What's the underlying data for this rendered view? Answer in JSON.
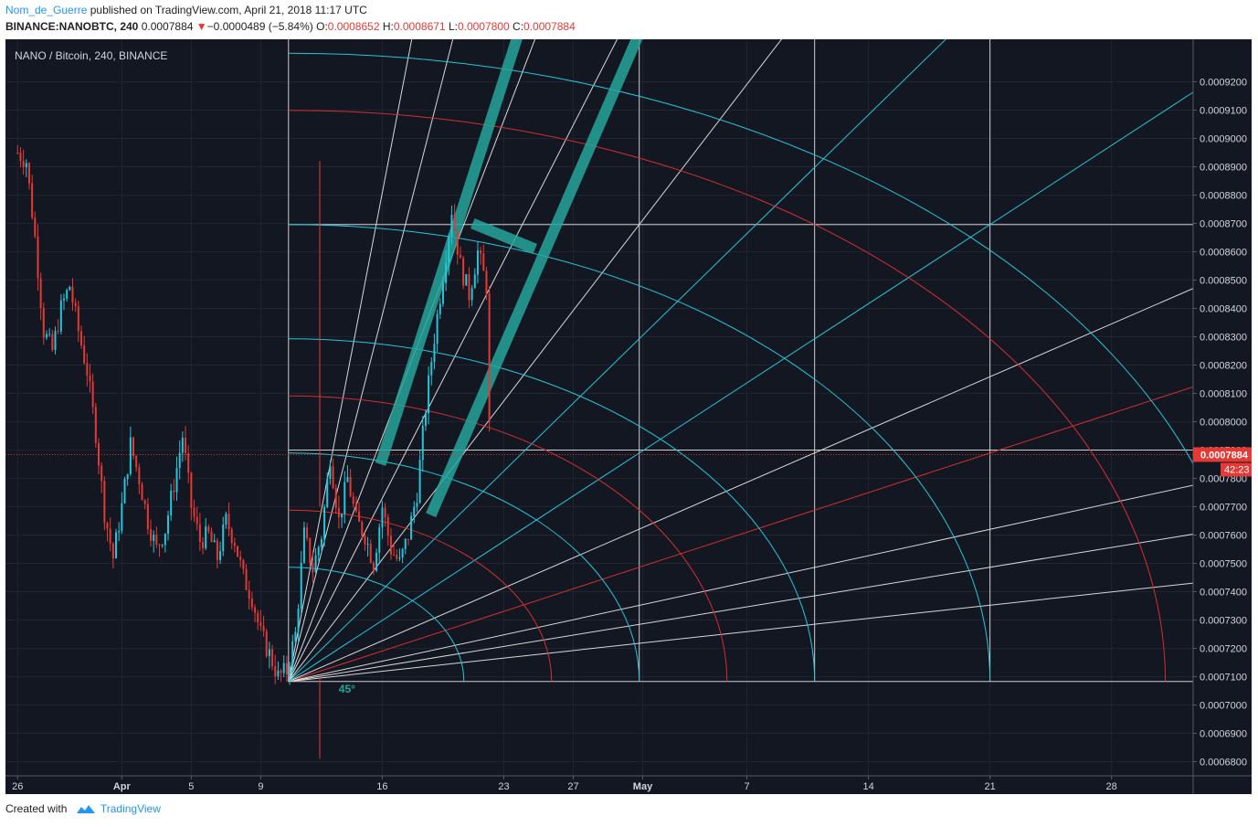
{
  "header": {
    "author": "Nom_de_Guerre",
    "published_text": "published on TradingView.com, April 21, 2018 11:17 UTC",
    "symbol_line": "BINANCE:NANOBTC, 240",
    "last": "0.0007884",
    "change": "−0.0000489 (−5.84%)",
    "o_label": "O:",
    "o_value": "0.0008652",
    "h_label": "H:",
    "h_value": "0.0008671",
    "l_label": "L:",
    "l_value": "0.0007800",
    "c_label": "C:",
    "c_value": "0.0007884",
    "down_arrow": "▼"
  },
  "footer": {
    "created_with": "Created with",
    "brand": "TradingView"
  },
  "colors": {
    "background": "#131722",
    "up": "#26c6da",
    "down": "#e53935",
    "fan_white": "#d8d8d8",
    "arc_cyan": "#26c6da",
    "arc_red": "#d32f2f",
    "price_tag": "#e53935",
    "band": "#26a69a"
  },
  "chart_data": {
    "type": "candlestick",
    "title": "NANO / Bitcoin, 240, BINANCE",
    "timeframe": "240",
    "ylim": [
      0.000675,
      0.000935
    ],
    "y_ticks": [
      "0.0006800",
      "0.0006900",
      "0.0007000",
      "0.0007100",
      "0.0007200",
      "0.0007300",
      "0.0007400",
      "0.0007500",
      "0.0007600",
      "0.0007700",
      "0.0007800",
      "0.0007900",
      "0.0008000",
      "0.0008100",
      "0.0008200",
      "0.0008300",
      "0.0008400",
      "0.0008500",
      "0.0008600",
      "0.0008700",
      "0.0008800",
      "0.0008900",
      "0.0009000",
      "0.0009100",
      "0.0009200"
    ],
    "x_ticks": [
      {
        "label": "26",
        "day": 0
      },
      {
        "label": "Apr",
        "day": 6
      },
      {
        "label": "5",
        "day": 10
      },
      {
        "label": "9",
        "day": 14
      },
      {
        "label": "16",
        "day": 21
      },
      {
        "label": "23",
        "day": 28
      },
      {
        "label": "27",
        "day": 32
      },
      {
        "label": "May",
        "day": 36
      },
      {
        "label": "7",
        "day": 42
      },
      {
        "label": "14",
        "day": 49
      },
      {
        "label": "21",
        "day": 56
      },
      {
        "label": "28",
        "day": 63
      }
    ],
    "x_range_days": [
      -0.7,
      67.7
    ],
    "last_price": "0.0007884",
    "countdown": "42:23",
    "price_path": [
      [
        0,
        0.000895
      ],
      [
        0.5,
        0.000892
      ],
      [
        1,
        0.000865
      ],
      [
        1.5,
        0.000832
      ],
      [
        2,
        0.000825
      ],
      [
        2.5,
        0.00084
      ],
      [
        3,
        0.000848
      ],
      [
        3.5,
        0.000832
      ],
      [
        4,
        0.000818
      ],
      [
        4.5,
        0.000796
      ],
      [
        5,
        0.000768
      ],
      [
        5.5,
        0.000752
      ],
      [
        6,
        0.00077
      ],
      [
        6.5,
        0.000792
      ],
      [
        7,
        0.00078
      ],
      [
        7.5,
        0.000765
      ],
      [
        8,
        0.000755
      ],
      [
        8.5,
        0.000762
      ],
      [
        9,
        0.000778
      ],
      [
        9.5,
        0.000795
      ],
      [
        10,
        0.00077
      ],
      [
        10.5,
        0.000758
      ],
      [
        11,
        0.00076
      ],
      [
        11.5,
        0.000752
      ],
      [
        12,
        0.000765
      ],
      [
        12.5,
        0.000758
      ],
      [
        13,
        0.000745
      ],
      [
        13.5,
        0.000738
      ],
      [
        14,
        0.000725
      ],
      [
        14.5,
        0.000718
      ],
      [
        15,
        0.00071
      ],
      [
        15.5,
        0.000712
      ],
      [
        16,
        0.000725
      ],
      [
        16.5,
        0.00076
      ],
      [
        17,
        0.000748
      ],
      [
        17.5,
        0.00076
      ],
      [
        18,
        0.000788
      ],
      [
        18.5,
        0.000765
      ],
      [
        19,
        0.00078
      ],
      [
        19.5,
        0.000765
      ],
      [
        20,
        0.00076
      ],
      [
        20.5,
        0.00075
      ],
      [
        21,
        0.00077
      ],
      [
        21.5,
        0.000755
      ],
      [
        22,
        0.00075
      ],
      [
        22.5,
        0.00076
      ],
      [
        23,
        0.000775
      ],
      [
        23.5,
        0.000805
      ],
      [
        24,
        0.00083
      ],
      [
        24.5,
        0.000852
      ],
      [
        25,
        0.000875
      ],
      [
        25.5,
        0.000855
      ],
      [
        26,
        0.000845
      ],
      [
        26.5,
        0.00086
      ],
      [
        27,
        0.000848
      ],
      [
        27.2,
        0.000788
      ]
    ],
    "low_wick": {
      "day": 17.4,
      "low": 0.000681,
      "high": 0.00071
    },
    "high_wick": {
      "day": 17.4,
      "low": 0.00077,
      "high": 0.000892
    },
    "gann": {
      "origin": {
        "day": 15.6,
        "price": 0.0007083
      },
      "box_corner": {
        "day": 56,
        "price": 0.0008696
      },
      "fan_lines": [
        {
          "tan": 0.167,
          "color": "white"
        },
        {
          "tan": 0.25,
          "color": "white"
        },
        {
          "tan": 0.333,
          "color": "white"
        },
        {
          "tan": 0.5,
          "color": "red"
        },
        {
          "tan": 0.667,
          "color": "white"
        },
        {
          "tan": 1.0,
          "color": "cyan"
        },
        {
          "tan": 1.5,
          "color": "cyan"
        },
        {
          "tan": 2.0,
          "color": "white"
        },
        {
          "tan": 3.0,
          "color": "white"
        },
        {
          "tan": 4.0,
          "color": "white"
        },
        {
          "tan": 6.0,
          "color": "white"
        },
        {
          "tan": 8.0,
          "color": "white"
        }
      ],
      "arcs": [
        {
          "r": 0.25,
          "color": "cyan"
        },
        {
          "r": 0.375,
          "color": "red"
        },
        {
          "r": 0.5,
          "color": "cyan"
        },
        {
          "r": 0.625,
          "color": "red"
        },
        {
          "r": 0.75,
          "color": "cyan"
        },
        {
          "r": 1.0,
          "color": "cyan"
        },
        {
          "r": 1.25,
          "color": "red"
        },
        {
          "r": 1.375,
          "color": "cyan"
        }
      ],
      "angle_label": "45°"
    },
    "annotations": [
      {
        "type": "band",
        "from": {
          "day": 20.9,
          "price": 0.000785
        },
        "to": {
          "day": 29,
          "price": 0.00094
        }
      },
      {
        "type": "band",
        "from": {
          "day": 23.8,
          "price": 0.000767
        },
        "to": {
          "day": 36,
          "price": 0.00094
        }
      },
      {
        "type": "band",
        "from": {
          "day": 26.2,
          "price": 0.00087
        },
        "to": {
          "day": 29.8,
          "price": 0.000861
        }
      }
    ]
  }
}
